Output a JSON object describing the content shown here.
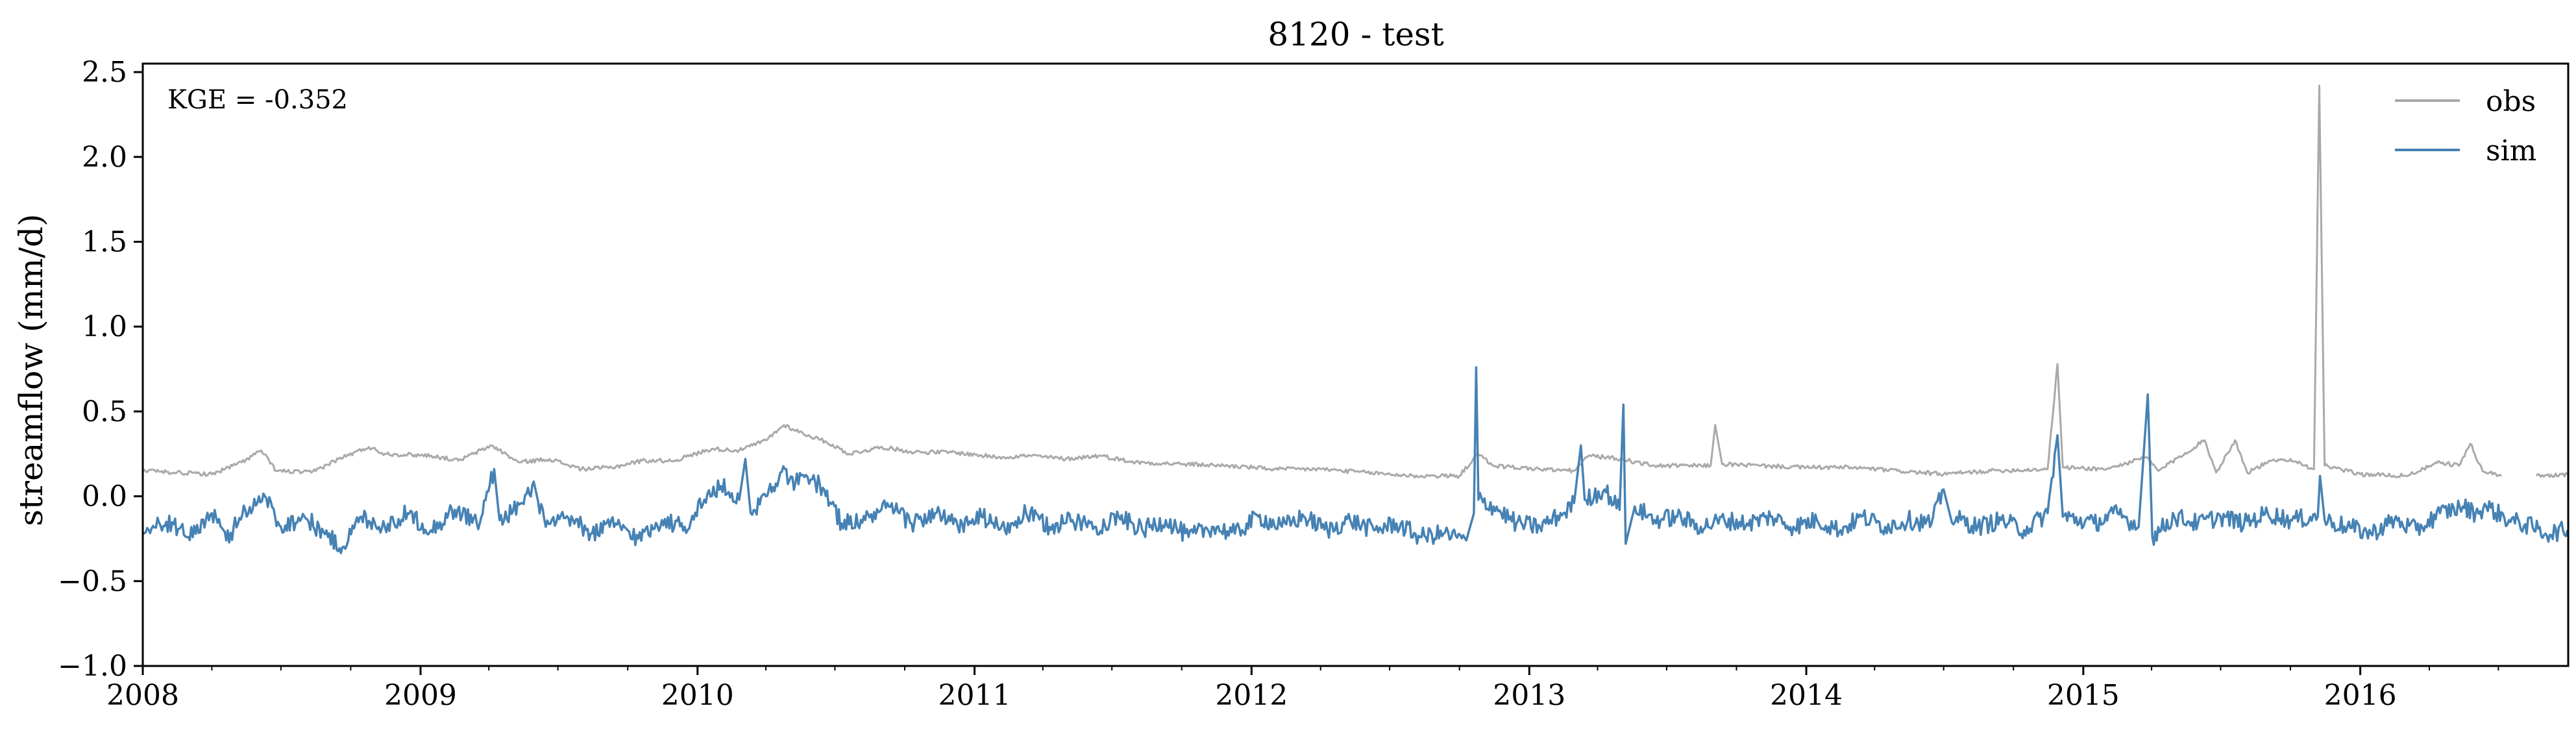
{
  "chart_data": {
    "type": "line",
    "title": "8120 - test",
    "xlabel": "",
    "ylabel": "streamflow (mm/d)",
    "annotation": "KGE = -0.352",
    "x_axis": {
      "type": "date",
      "range": [
        "2008-01-01",
        "2016-10-01"
      ],
      "ticks": [
        "2008-01-01",
        "2009-01-01",
        "2010-01-01",
        "2011-01-01",
        "2012-01-01",
        "2013-01-01",
        "2014-01-01",
        "2015-01-01",
        "2016-01-01"
      ],
      "tick_labels": [
        "2008",
        "2009",
        "2010",
        "2011",
        "2012",
        "2013",
        "2014",
        "2015",
        "2016"
      ]
    },
    "y_axis": {
      "range": [
        -1.0,
        2.55
      ],
      "ticks": [
        -1.0,
        -0.5,
        0.0,
        0.5,
        1.0,
        1.5,
        2.0,
        2.5
      ],
      "tick_labels": [
        "−1.0",
        "−0.5",
        "0.0",
        "0.5",
        "1.0",
        "1.5",
        "2.0",
        "2.5"
      ]
    },
    "grid": false,
    "legend": {
      "position": "top-right",
      "entries": [
        "obs",
        "sim"
      ]
    },
    "series": [
      {
        "name": "obs",
        "color": "#a9a9a9",
        "points": [
          [
            "2008-01-01",
            0.15
          ],
          [
            "2008-02-15",
            0.14
          ],
          [
            "2008-04-01",
            0.13
          ],
          [
            "2008-05-10",
            0.2
          ],
          [
            "2008-06-05",
            0.27
          ],
          [
            "2008-06-25",
            0.15
          ],
          [
            "2008-08-10",
            0.14
          ],
          [
            "2008-09-15",
            0.22
          ],
          [
            "2008-10-25",
            0.29
          ],
          [
            "2008-11-15",
            0.25
          ],
          [
            "2009-01-15",
            0.24
          ],
          [
            "2009-02-20",
            0.21
          ],
          [
            "2009-04-05",
            0.3
          ],
          [
            "2009-05-10",
            0.2
          ],
          [
            "2009-06-20",
            0.22
          ],
          [
            "2009-08-01",
            0.16
          ],
          [
            "2009-09-10",
            0.17
          ],
          [
            "2009-10-20",
            0.21
          ],
          [
            "2009-12-01",
            0.21
          ],
          [
            "2010-01-20",
            0.28
          ],
          [
            "2010-02-25",
            0.27
          ],
          [
            "2010-04-01",
            0.33
          ],
          [
            "2010-04-25",
            0.42
          ],
          [
            "2010-05-20",
            0.37
          ],
          [
            "2010-06-20",
            0.32
          ],
          [
            "2010-07-20",
            0.25
          ],
          [
            "2010-09-01",
            0.29
          ],
          [
            "2010-10-15",
            0.26
          ],
          [
            "2010-12-01",
            0.26
          ],
          [
            "2011-02-01",
            0.23
          ],
          [
            "2011-03-15",
            0.24
          ],
          [
            "2011-05-01",
            0.22
          ],
          [
            "2011-06-15",
            0.24
          ],
          [
            "2011-08-01",
            0.2
          ],
          [
            "2011-10-01",
            0.19
          ],
          [
            "2011-12-01",
            0.18
          ],
          [
            "2012-02-01",
            0.16
          ],
          [
            "2012-04-01",
            0.16
          ],
          [
            "2012-06-01",
            0.14
          ],
          [
            "2012-08-01",
            0.12
          ],
          [
            "2012-10-01",
            0.12
          ],
          [
            "2012-10-25",
            0.25
          ],
          [
            "2012-11-15",
            0.18
          ],
          [
            "2013-01-15",
            0.16
          ],
          [
            "2013-03-01",
            0.15
          ],
          [
            "2013-03-20",
            0.24
          ],
          [
            "2013-05-01",
            0.22
          ],
          [
            "2013-06-15",
            0.18
          ],
          [
            "2013-08-28",
            0.18
          ],
          [
            "2013-09-03",
            0.42
          ],
          [
            "2013-09-12",
            0.19
          ],
          [
            "2013-11-01",
            0.18
          ],
          [
            "2014-01-01",
            0.17
          ],
          [
            "2014-03-01",
            0.17
          ],
          [
            "2014-05-01",
            0.15
          ],
          [
            "2014-07-01",
            0.13
          ],
          [
            "2014-09-01",
            0.15
          ],
          [
            "2014-11-15",
            0.16
          ],
          [
            "2014-11-28",
            0.78
          ],
          [
            "2014-12-05",
            0.17
          ],
          [
            "2015-02-01",
            0.16
          ],
          [
            "2015-03-25",
            0.23
          ],
          [
            "2015-04-10",
            0.15
          ],
          [
            "2015-06-10",
            0.33
          ],
          [
            "2015-06-25",
            0.14
          ],
          [
            "2015-07-20",
            0.33
          ],
          [
            "2015-08-05",
            0.14
          ],
          [
            "2015-09-01",
            0.2
          ],
          [
            "2015-10-01",
            0.22
          ],
          [
            "2015-11-01",
            0.16
          ],
          [
            "2015-11-08",
            2.42
          ],
          [
            "2015-11-15",
            0.18
          ],
          [
            "2016-01-01",
            0.13
          ],
          [
            "2016-03-01",
            0.12
          ],
          [
            "2016-04-15",
            0.2
          ],
          [
            "2016-05-10",
            0.18
          ],
          [
            "2016-05-25",
            0.31
          ],
          [
            "2016-06-10",
            0.15
          ],
          [
            "2016-07-05",
            0.12
          ],
          [
            null,
            null
          ],
          [
            "2016-08-20",
            0.12
          ],
          [
            "2016-09-30",
            0.13
          ]
        ]
      },
      {
        "name": "sim",
        "color": "#4682b4",
        "points": [
          [
            "2008-01-01",
            -0.22
          ],
          [
            "2008-02-01",
            -0.15
          ],
          [
            "2008-03-01",
            -0.24
          ],
          [
            "2008-04-01",
            -0.1
          ],
          [
            "2008-04-20",
            -0.26
          ],
          [
            "2008-05-15",
            -0.08
          ],
          [
            "2008-06-10",
            0.0
          ],
          [
            "2008-07-01",
            -0.18
          ],
          [
            "2008-08-01",
            -0.12
          ],
          [
            "2008-09-01",
            -0.24
          ],
          [
            "2008-09-20",
            -0.3
          ],
          [
            "2008-10-15",
            -0.12
          ],
          [
            "2008-11-15",
            -0.18
          ],
          [
            "2008-12-15",
            -0.1
          ],
          [
            "2009-01-15",
            -0.2
          ],
          [
            "2009-02-15",
            -0.08
          ],
          [
            "2009-03-20",
            -0.16
          ],
          [
            "2009-04-08",
            0.16
          ],
          [
            "2009-04-15",
            -0.14
          ],
          [
            "2009-05-15",
            -0.04
          ],
          [
            "2009-06-01",
            0.05
          ],
          [
            "2009-06-15",
            -0.18
          ],
          [
            "2009-07-15",
            -0.13
          ],
          [
            "2009-08-15",
            -0.22
          ],
          [
            "2009-09-15",
            -0.16
          ],
          [
            "2009-10-15",
            -0.25
          ],
          [
            "2009-11-15",
            -0.14
          ],
          [
            "2009-12-15",
            -0.18
          ],
          [
            "2010-01-10",
            -0.02
          ],
          [
            "2010-02-01",
            0.06
          ],
          [
            "2010-02-25",
            -0.02
          ],
          [
            "2010-03-05",
            0.22
          ],
          [
            "2010-03-12",
            -0.1
          ],
          [
            "2010-04-01",
            0.0
          ],
          [
            "2010-04-20",
            0.14
          ],
          [
            "2010-05-10",
            0.08
          ],
          [
            "2010-06-01",
            0.1
          ],
          [
            "2010-06-15",
            0.05
          ],
          [
            "2010-07-10",
            -0.16
          ],
          [
            "2010-08-10",
            -0.14
          ],
          [
            "2010-09-10",
            -0.06
          ],
          [
            "2010-10-10",
            -0.16
          ],
          [
            "2010-11-10",
            -0.1
          ],
          [
            "2010-12-10",
            -0.18
          ],
          [
            "2011-01-10",
            -0.12
          ],
          [
            "2011-02-10",
            -0.2
          ],
          [
            "2011-03-10",
            -0.1
          ],
          [
            "2011-04-10",
            -0.18
          ],
          [
            "2011-05-10",
            -0.14
          ],
          [
            "2011-06-10",
            -0.18
          ],
          [
            "2011-07-10",
            -0.12
          ],
          [
            "2011-08-10",
            -0.2
          ],
          [
            "2011-09-10",
            -0.14
          ],
          [
            "2011-10-10",
            -0.24
          ],
          [
            "2011-11-10",
            -0.18
          ],
          [
            "2011-12-10",
            -0.22
          ],
          [
            "2012-01-10",
            -0.12
          ],
          [
            "2012-02-10",
            -0.18
          ],
          [
            "2012-03-10",
            -0.12
          ],
          [
            "2012-04-10",
            -0.2
          ],
          [
            "2012-05-10",
            -0.14
          ],
          [
            "2012-06-10",
            -0.2
          ],
          [
            "2012-07-10",
            -0.16
          ],
          [
            "2012-08-10",
            -0.24
          ],
          [
            "2012-09-10",
            -0.22
          ],
          [
            "2012-10-10",
            -0.26
          ],
          [
            "2012-10-20",
            -0.1
          ],
          [
            "2012-10-23",
            0.76
          ],
          [
            "2012-10-26",
            -0.02
          ],
          [
            "2012-11-15",
            -0.06
          ],
          [
            "2012-12-15",
            -0.16
          ],
          [
            "2013-01-15",
            -0.18
          ],
          [
            "2013-02-15",
            -0.1
          ],
          [
            "2013-03-01",
            -0.04
          ],
          [
            "2013-03-10",
            0.3
          ],
          [
            "2013-03-15",
            -0.02
          ],
          [
            "2013-04-10",
            0.04
          ],
          [
            "2013-04-30",
            -0.08
          ],
          [
            "2013-05-05",
            0.54
          ],
          [
            "2013-05-08",
            -0.28
          ],
          [
            "2013-05-20",
            -0.06
          ],
          [
            "2013-06-15",
            -0.14
          ],
          [
            "2013-07-15",
            -0.12
          ],
          [
            "2013-08-15",
            -0.18
          ],
          [
            "2013-09-15",
            -0.14
          ],
          [
            "2013-10-15",
            -0.16
          ],
          [
            "2013-11-15",
            -0.12
          ],
          [
            "2013-12-15",
            -0.18
          ],
          [
            "2014-01-15",
            -0.14
          ],
          [
            "2014-02-15",
            -0.2
          ],
          [
            "2014-03-15",
            -0.12
          ],
          [
            "2014-04-15",
            -0.18
          ],
          [
            "2014-05-15",
            -0.14
          ],
          [
            "2014-06-15",
            -0.16
          ],
          [
            "2014-07-01",
            0.04
          ],
          [
            "2014-07-10",
            -0.12
          ],
          [
            "2014-08-15",
            -0.18
          ],
          [
            "2014-09-15",
            -0.14
          ],
          [
            "2014-10-15",
            -0.2
          ],
          [
            "2014-11-15",
            -0.1
          ],
          [
            "2014-11-28",
            0.36
          ],
          [
            "2014-12-05",
            -0.12
          ],
          [
            "2015-01-15",
            -0.16
          ],
          [
            "2015-02-15",
            -0.1
          ],
          [
            "2015-03-15",
            -0.18
          ],
          [
            "2015-03-27",
            0.6
          ],
          [
            "2015-04-02",
            -0.24
          ],
          [
            "2015-05-01",
            -0.12
          ],
          [
            "2015-06-01",
            -0.16
          ],
          [
            "2015-07-01",
            -0.12
          ],
          [
            "2015-08-01",
            -0.16
          ],
          [
            "2015-09-01",
            -0.1
          ],
          [
            "2015-10-01",
            -0.14
          ],
          [
            "2015-11-06",
            -0.12
          ],
          [
            "2015-11-09",
            0.12
          ],
          [
            "2015-11-15",
            -0.14
          ],
          [
            "2015-12-15",
            -0.18
          ],
          [
            "2016-01-15",
            -0.22
          ],
          [
            "2016-02-15",
            -0.14
          ],
          [
            "2016-03-15",
            -0.2
          ],
          [
            "2016-04-15",
            -0.1
          ],
          [
            "2016-05-15",
            -0.06
          ],
          [
            "2016-06-01",
            -0.1
          ],
          [
            "2016-06-15",
            -0.06
          ],
          [
            "2016-07-15",
            -0.14
          ],
          [
            "2016-08-15",
            -0.18
          ],
          [
            "2016-09-01",
            -0.22
          ],
          [
            "2016-09-30",
            -0.2
          ]
        ]
      }
    ]
  }
}
